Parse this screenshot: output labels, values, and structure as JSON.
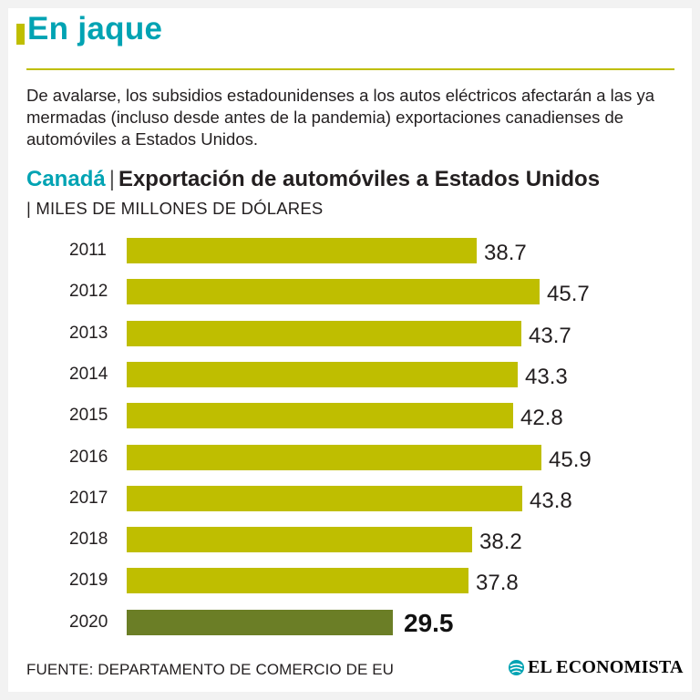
{
  "colors": {
    "accent": "#bfbe00",
    "highlight_bar": "#6b7e26",
    "brand_teal": "#00a3b3",
    "rule": "#bfbe00"
  },
  "header": {
    "title": "En jaque",
    "subtitle": "De avalarse, los subsidios estadounidenses a los autos eléctricos afectarán a las ya mermadas (incluso desde antes de la pandemia) exportaciones canadienses de automóviles a Estados Unidos."
  },
  "chart_data": {
    "type": "bar",
    "orientation": "horizontal",
    "title_country": "Canadá",
    "title": "Exportación de automóviles a Estados Unidos",
    "units": "| MILES DE MILLONES DE DÓLARES",
    "categories": [
      "2011",
      "2012",
      "2013",
      "2014",
      "2015",
      "2016",
      "2017",
      "2018",
      "2019",
      "2020"
    ],
    "values": [
      38.7,
      45.7,
      43.7,
      43.3,
      42.8,
      45.9,
      43.8,
      38.2,
      37.8,
      29.5
    ],
    "value_labels": [
      "38.7",
      "45.7",
      "43.7",
      "43.3",
      "42.8",
      "45.9",
      "43.8",
      "38.2",
      "37.8",
      "29.5"
    ],
    "highlight_index": 9,
    "xlim": [
      0,
      45.9
    ]
  },
  "footer": {
    "source": "FUENTE: DEPARTAMENTO DE COMERCIO DE EU",
    "logo_text": "EL ECONOMISTA",
    "logo_icon": "el-economista-globe-icon"
  }
}
